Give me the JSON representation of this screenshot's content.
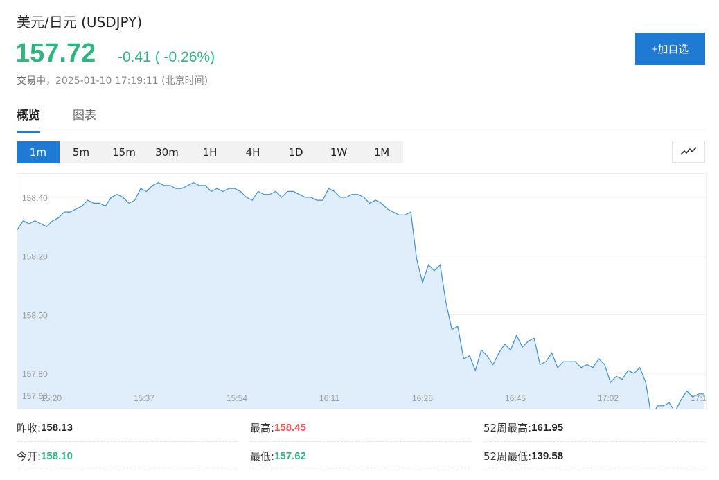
{
  "header": {
    "title": "美元/日元  (USDJPY)",
    "price": "157.72",
    "change": "-0.41 ( -0.26%)",
    "status": "交易中",
    "sep": "，",
    "timestamp": "2025-01-10 17:19:11 (北京时间)",
    "add_watchlist": "+加自选"
  },
  "tabs": [
    {
      "label": "概览",
      "active": true
    },
    {
      "label": "图表",
      "active": false
    }
  ],
  "periods": [
    {
      "label": "1m",
      "active": true
    },
    {
      "label": "5m",
      "active": false
    },
    {
      "label": "15m",
      "active": false
    },
    {
      "label": "30m",
      "active": false
    },
    {
      "label": "1H",
      "active": false
    },
    {
      "label": "4H",
      "active": false
    },
    {
      "label": "1D",
      "active": false
    },
    {
      "label": "1W",
      "active": false
    },
    {
      "label": "1M",
      "active": false
    }
  ],
  "chart_type_icon": "line-chart-icon",
  "chart_data": {
    "type": "area",
    "ylim": [
      157.68,
      158.48
    ],
    "y_ticks": [
      "158.40",
      "158.20",
      "158.00",
      "157.80",
      "157.68"
    ],
    "x_ticks": [
      "15:20",
      "15:37",
      "15:54",
      "16:11",
      "16:28",
      "16:45",
      "17:02",
      "17:1"
    ],
    "grid": true,
    "line_color": "#3a8fd6",
    "fill_color": "#e0eefb",
    "values": [
      158.29,
      158.32,
      158.31,
      158.32,
      158.31,
      158.3,
      158.32,
      158.33,
      158.35,
      158.35,
      158.36,
      158.37,
      158.39,
      158.38,
      158.38,
      158.37,
      158.4,
      158.41,
      158.4,
      158.38,
      158.39,
      158.43,
      158.42,
      158.44,
      158.45,
      158.44,
      158.44,
      158.43,
      158.43,
      158.44,
      158.45,
      158.44,
      158.44,
      158.42,
      158.43,
      158.42,
      158.43,
      158.43,
      158.42,
      158.4,
      158.39,
      158.42,
      158.41,
      158.41,
      158.42,
      158.4,
      158.42,
      158.42,
      158.41,
      158.4,
      158.4,
      158.39,
      158.39,
      158.43,
      158.42,
      158.4,
      158.4,
      158.41,
      158.41,
      158.4,
      158.38,
      158.39,
      158.38,
      158.36,
      158.35,
      158.34,
      158.34,
      158.35,
      158.19,
      158.11,
      158.17,
      158.15,
      158.17,
      158.04,
      157.95,
      157.96,
      157.85,
      157.86,
      157.81,
      157.88,
      157.86,
      157.83,
      157.87,
      157.9,
      157.88,
      157.93,
      157.89,
      157.91,
      157.92,
      157.83,
      157.84,
      157.87,
      157.82,
      157.84,
      157.84,
      157.84,
      157.82,
      157.83,
      157.82,
      157.85,
      157.83,
      157.77,
      157.79,
      157.78,
      157.81,
      157.8,
      157.82,
      157.77,
      157.65,
      157.69,
      157.69,
      157.7,
      157.67,
      157.71,
      157.74,
      157.72,
      157.73,
      157.73
    ]
  },
  "stats": [
    {
      "label": "昨收:",
      "value": "158.13",
      "tone": "normal"
    },
    {
      "label": "最高:",
      "value": "158.45",
      "tone": "up"
    },
    {
      "label": "52周最高:",
      "value": "161.95",
      "tone": "normal"
    },
    {
      "label": "今开:",
      "value": "158.10",
      "tone": "down"
    },
    {
      "label": "最低:",
      "value": "157.62",
      "tone": "down"
    },
    {
      "label": "52周最低:",
      "value": "139.58",
      "tone": "normal"
    }
  ]
}
